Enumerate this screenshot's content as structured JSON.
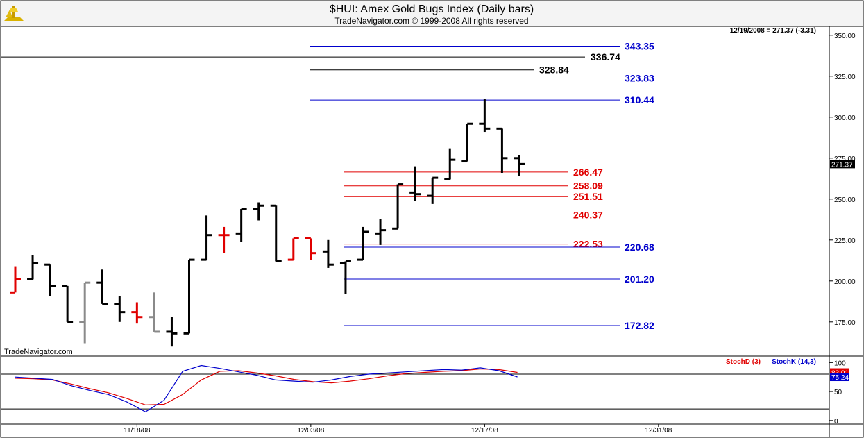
{
  "header": {
    "title": "$HUI:  Amex Gold Bugs Index  (Daily bars)",
    "subtitle": "TradeNavigator.com © 1999-2008 All rights reserved",
    "info": "12/19/2008 = 271.37 (-3.31)",
    "watermark": "TradeNavigator.com",
    "logo": "trade-navigator-logo"
  },
  "colors": {
    "up_bar": "#000000",
    "red_bar": "#e00000",
    "grey_bar": "#8a8a8a",
    "blue_level": "#0000cc",
    "red_level": "#e00000",
    "black_level": "#000000",
    "stochD": "#e00000",
    "stochK": "#0000cc"
  },
  "chart_data": [
    {
      "type": "ohlc",
      "title": "$HUI:  Amex Gold Bugs Index  (Daily bars)",
      "ylim": [
        155,
        355
      ],
      "y_ticks": [
        175,
        200,
        225,
        250,
        275,
        300,
        325,
        350
      ],
      "y_tick_labels": [
        "175.00",
        "200.00",
        "225.00",
        "250.00",
        "275.00",
        "300.00",
        "325.00",
        "350.00"
      ],
      "x_ticks": [
        "11/18/08",
        "12/03/08",
        "12/17/08",
        "12/31/08"
      ],
      "last_value_label": "271.37",
      "bars": [
        {
          "i": 0,
          "o": 193,
          "h": 209,
          "l": 193,
          "c": 201,
          "color": "red"
        },
        {
          "i": 1,
          "o": 201,
          "h": 216,
          "l": 201,
          "c": 211,
          "color": "black"
        },
        {
          "i": 2,
          "o": 210,
          "h": 210,
          "l": 191,
          "c": 197,
          "color": "black"
        },
        {
          "i": 3,
          "o": 197,
          "h": 197,
          "l": 175,
          "c": 175,
          "color": "black"
        },
        {
          "i": 4,
          "o": 175,
          "h": 199,
          "l": 162,
          "c": 199,
          "color": "grey"
        },
        {
          "i": 5,
          "o": 199,
          "h": 207,
          "l": 186,
          "c": 186,
          "color": "black"
        },
        {
          "i": 6,
          "o": 186,
          "h": 191,
          "l": 175,
          "c": 181,
          "color": "black"
        },
        {
          "i": 7,
          "o": 181,
          "h": 187,
          "l": 174,
          "c": 178,
          "color": "red"
        },
        {
          "i": 8,
          "o": 178,
          "h": 193,
          "l": 169,
          "c": 169,
          "color": "grey"
        },
        {
          "i": 9,
          "o": 169,
          "h": 178,
          "l": 160,
          "c": 168,
          "color": "black"
        },
        {
          "i": 10,
          "o": 168,
          "h": 213,
          "l": 168,
          "c": 213,
          "color": "black"
        },
        {
          "i": 11,
          "o": 213,
          "h": 240,
          "l": 213,
          "c": 228,
          "color": "black"
        },
        {
          "i": 12,
          "o": 228,
          "h": 233,
          "l": 217,
          "c": 228,
          "color": "red"
        },
        {
          "i": 13,
          "o": 229,
          "h": 244,
          "l": 224,
          "c": 244,
          "color": "black"
        },
        {
          "i": 14,
          "o": 244,
          "h": 248,
          "l": 237,
          "c": 246,
          "color": "black"
        },
        {
          "i": 15,
          "o": 246,
          "h": 246,
          "l": 212,
          "c": 212,
          "color": "black"
        },
        {
          "i": 16,
          "o": 213,
          "h": 226,
          "l": 213,
          "c": 226,
          "color": "red"
        },
        {
          "i": 17,
          "o": 226,
          "h": 226,
          "l": 213,
          "c": 217,
          "color": "red"
        },
        {
          "i": 18,
          "o": 218,
          "h": 225,
          "l": 208,
          "c": 210,
          "color": "black"
        },
        {
          "i": 19,
          "o": 211,
          "h": 212,
          "l": 192,
          "c": 212,
          "color": "black"
        },
        {
          "i": 20,
          "o": 213,
          "h": 233,
          "l": 213,
          "c": 230,
          "color": "black"
        },
        {
          "i": 21,
          "o": 229,
          "h": 238,
          "l": 222,
          "c": 231,
          "color": "black"
        },
        {
          "i": 22,
          "o": 232,
          "h": 259,
          "l": 232,
          "c": 259,
          "color": "black"
        },
        {
          "i": 23,
          "o": 254,
          "h": 270,
          "l": 249,
          "c": 253,
          "color": "black"
        },
        {
          "i": 24,
          "o": 252,
          "h": 263,
          "l": 247,
          "c": 263,
          "color": "black"
        },
        {
          "i": 25,
          "o": 262,
          "h": 281,
          "l": 262,
          "c": 274,
          "color": "black"
        },
        {
          "i": 26,
          "o": 273,
          "h": 296,
          "l": 273,
          "c": 296,
          "color": "black"
        },
        {
          "i": 27,
          "o": 296,
          "h": 311,
          "l": 291,
          "c": 293,
          "color": "black"
        },
        {
          "i": 28,
          "o": 293,
          "h": 293,
          "l": 266,
          "c": 275,
          "color": "black"
        },
        {
          "i": 29,
          "o": 275,
          "h": 277,
          "l": 264,
          "c": 271.37,
          "color": "black"
        }
      ],
      "levels": [
        {
          "value": 343.35,
          "label": "343.35",
          "color": "blue"
        },
        {
          "value": 336.74,
          "label": "336.74",
          "color": "black",
          "full": true
        },
        {
          "value": 328.84,
          "label": "328.84",
          "color": "black"
        },
        {
          "value": 323.83,
          "label": "323.83",
          "color": "blue"
        },
        {
          "value": 310.44,
          "label": "310.44",
          "color": "blue"
        },
        {
          "value": 266.47,
          "label": "266.47",
          "color": "red"
        },
        {
          "value": 258.09,
          "label": "258.09",
          "color": "red"
        },
        {
          "value": 251.51,
          "label": "251.51",
          "color": "red"
        },
        {
          "value": 240.37,
          "label": "240.37",
          "color": "red",
          "text_only": true
        },
        {
          "value": 222.53,
          "label": "222.53",
          "color": "red"
        },
        {
          "value": 220.68,
          "label": "220.68",
          "color": "blue"
        },
        {
          "value": 201.2,
          "label": "201.20",
          "color": "blue"
        },
        {
          "value": 172.82,
          "label": "172.82",
          "color": "blue"
        }
      ]
    },
    {
      "type": "line",
      "legend": [
        "StochD (3)",
        "StochK (14,3)"
      ],
      "ylim": [
        -5,
        110
      ],
      "y_ticks": [
        0,
        50,
        100
      ],
      "y_tick_labels": [
        "0",
        "50",
        "100"
      ],
      "reference_lines": [
        20,
        80
      ],
      "series": [
        {
          "name": "StochD (3)",
          "values": [
            73,
            72,
            70,
            63,
            55,
            48,
            38,
            27,
            28,
            45,
            70,
            85,
            86,
            82,
            77,
            71,
            67,
            65,
            68,
            72,
            77,
            81,
            83,
            85,
            86,
            89,
            88,
            83.01
          ]
        },
        {
          "name": "StochK (14,3)",
          "values": [
            75,
            73,
            71,
            60,
            52,
            45,
            32,
            15,
            35,
            85,
            95,
            90,
            84,
            78,
            70,
            68,
            66,
            70,
            76,
            80,
            82,
            84,
            86,
            88,
            87,
            91,
            86,
            75.24
          ]
        }
      ],
      "last_value_labels": [
        "83.01",
        "75.24"
      ]
    }
  ]
}
